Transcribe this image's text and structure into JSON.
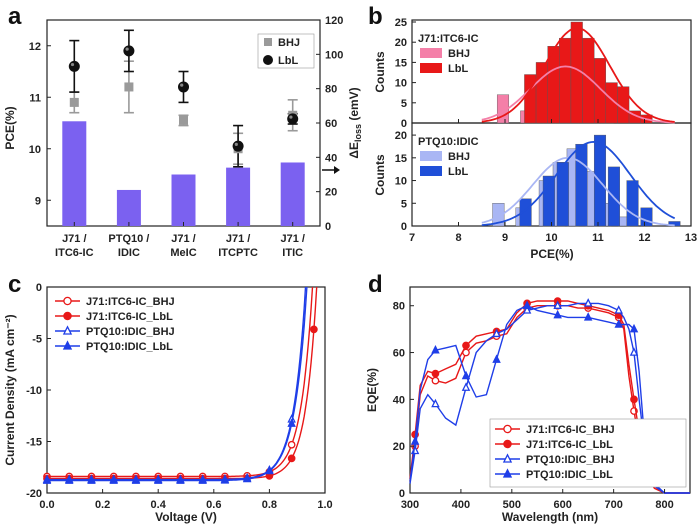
{
  "panel_labels": [
    "a",
    "b",
    "c",
    "d"
  ],
  "chart_data": [
    {
      "panel": "a",
      "type": "bar",
      "categories": [
        "J71 / ITC6-IC",
        "PTQ10 / IDIC",
        "J71 / MeIC",
        "J71 / ITCPTC",
        "J71 / ITIC"
      ],
      "categories_lines": [
        [
          "J71 /",
          "ITC6-IC"
        ],
        [
          "PTQ10 /",
          "IDIC"
        ],
        [
          "J71 /",
          "MeIC"
        ],
        [
          "J71 /",
          "ITCPTC"
        ],
        [
          "J71 /",
          "ITIC"
        ]
      ],
      "ylabel": "PCE(%)",
      "ylim": [
        8.5,
        12.5
      ],
      "yticks": [
        9,
        10,
        11,
        12
      ],
      "y2label_main": "ΔE",
      "y2label_sub": "loss",
      "y2label_unit": " (emV)",
      "y2lim": [
        0,
        120
      ],
      "y2ticks": [
        0,
        20,
        40,
        60,
        80,
        100,
        120
      ],
      "bars": {
        "axis": "right",
        "color": "#7b61f0",
        "values": [
          61,
          21,
          30,
          34,
          37
        ]
      },
      "series": [
        {
          "name": "BHJ",
          "marker": "square",
          "color": "#9a9a9a",
          "values": [
            10.9,
            11.2,
            10.55,
            10.0,
            10.65
          ],
          "err": [
            0.2,
            0.5,
            0.1,
            0.3,
            0.3
          ]
        },
        {
          "name": "LbL",
          "marker": "circle",
          "color": "#111111",
          "values": [
            11.6,
            11.9,
            11.2,
            10.05,
            10.58
          ],
          "err": [
            0.5,
            0.4,
            0.3,
            0.4,
            0.1
          ]
        }
      ],
      "legend": "top-right"
    },
    {
      "panel": "b-top",
      "type": "bar",
      "title": "J71:ITC6-IC",
      "ylabel": "Counts",
      "ylim": [
        0,
        25
      ],
      "yticks": [
        0,
        5,
        10,
        15,
        20,
        25
      ],
      "xlim": [
        7,
        13
      ],
      "bin_width": 0.25,
      "series": [
        {
          "name": "BHJ",
          "color": "#f47fa8",
          "x": [
            9.0,
            9.5,
            9.75,
            10.0,
            10.25,
            10.5,
            10.75,
            11.0,
            11.25
          ],
          "values": [
            7,
            3,
            10,
            13,
            10,
            8,
            6,
            5,
            1
          ],
          "fit_center": 10.3,
          "fit_sigma": 0.75,
          "fit_amp": 14
        },
        {
          "name": "LbL",
          "color": "#e81818",
          "x": [
            9.5,
            9.75,
            10.0,
            10.25,
            10.5,
            10.75,
            11.0,
            11.25,
            11.5,
            11.75,
            12.0
          ],
          "values": [
            12,
            15,
            19,
            21,
            25,
            21,
            16,
            10,
            9,
            3,
            2
          ],
          "fit_center": 10.55,
          "fit_sigma": 0.7,
          "fit_amp": 23.5
        }
      ],
      "legend": "top-left"
    },
    {
      "panel": "b-bottom",
      "type": "bar",
      "title": "PTQ10:IDIC",
      "ylabel": "Counts",
      "xlabel": "PCE(%)",
      "ylim": [
        0,
        22
      ],
      "yticks": [
        0,
        5,
        10,
        15,
        20
      ],
      "xlim": [
        7,
        13
      ],
      "xticks": [
        7,
        8,
        9,
        10,
        11,
        12,
        13
      ],
      "bin_width": 0.25,
      "series": [
        {
          "name": "BHJ",
          "color": "#a9b6f4",
          "x": [
            8.9,
            9.4,
            9.9,
            10.2,
            10.5,
            10.9,
            11.2,
            11.6
          ],
          "values": [
            5,
            4,
            10,
            14,
            17,
            12,
            5,
            2
          ],
          "fit_center": 10.35,
          "fit_sigma": 0.75,
          "fit_amp": 15
        },
        {
          "name": "LbL",
          "color": "#1f4fd8",
          "x": [
            9.4,
            9.9,
            10.2,
            10.6,
            11.0,
            11.3,
            11.7,
            12.0,
            12.6
          ],
          "values": [
            6,
            11,
            14,
            18,
            20,
            13,
            10,
            4,
            1
          ],
          "fit_center": 10.9,
          "fit_sigma": 0.8,
          "fit_amp": 18.5
        }
      ],
      "legend": "top-left"
    },
    {
      "panel": "c",
      "type": "line",
      "xlabel": "Voltage (V)",
      "ylabel": "Current Density (mA cm⁻²)",
      "xlim": [
        0,
        1.0
      ],
      "ylim": [
        -20,
        0
      ],
      "xticks": [
        0.0,
        0.2,
        0.4,
        0.6,
        0.8,
        1.0
      ],
      "yticks": [
        -20,
        -15,
        -10,
        -5,
        0
      ],
      "series": [
        {
          "name": "J71:ITC6-IC_BHJ",
          "marker": "circle-open",
          "color": "#e81818",
          "jsc": 18.4,
          "voc": 0.955,
          "k": 0.042,
          "a": 0.012
        },
        {
          "name": "J71:ITC6-IC_LbL",
          "marker": "circle",
          "color": "#e81818",
          "jsc": 18.6,
          "voc": 0.97,
          "k": 0.04,
          "a": 0.011
        },
        {
          "name": "PTQ10:IDIC_BHJ",
          "marker": "triangle-open",
          "color": "#1f3ee8",
          "jsc": 18.7,
          "voc": 0.93,
          "k": 0.043,
          "a": 0.014
        },
        {
          "name": "PTQ10:IDIC_LbL",
          "marker": "triangle",
          "color": "#1f3ee8",
          "jsc": 18.8,
          "voc": 0.935,
          "k": 0.045,
          "a": 0.013
        }
      ],
      "legend": "top-left"
    },
    {
      "panel": "d",
      "type": "line",
      "xlabel": "Wavelength (nm)",
      "ylabel": "EQE(%)",
      "xlim": [
        300,
        850
      ],
      "ylim": [
        0,
        88
      ],
      "xticks": [
        300,
        400,
        500,
        600,
        700,
        800
      ],
      "yticks": [
        0,
        20,
        40,
        60,
        80
      ],
      "series": [
        {
          "name": "J71:ITC6-IC_BHJ",
          "marker": "circle-open",
          "color": "#e81818",
          "x": [
            300,
            310,
            320,
            335,
            350,
            370,
            390,
            410,
            430,
            450,
            470,
            490,
            510,
            530,
            550,
            570,
            590,
            610,
            630,
            650,
            670,
            690,
            710,
            720,
            730,
            740,
            750,
            760,
            770,
            780,
            800,
            850
          ],
          "y": [
            5,
            20,
            42,
            50,
            48,
            47,
            49,
            60,
            64,
            65,
            67,
            68,
            75,
            79,
            80,
            80,
            80,
            80,
            79,
            79,
            78,
            77,
            75,
            70,
            50,
            35,
            22,
            12,
            6,
            2,
            0,
            0
          ]
        },
        {
          "name": "J71:ITC6-IC_LbL",
          "marker": "circle",
          "color": "#e81818",
          "x": [
            300,
            310,
            320,
            335,
            350,
            370,
            390,
            410,
            430,
            450,
            470,
            490,
            510,
            530,
            550,
            570,
            590,
            610,
            630,
            650,
            670,
            690,
            710,
            720,
            730,
            740,
            750,
            760,
            770,
            780,
            800,
            850
          ],
          "y": [
            6,
            25,
            46,
            52,
            51,
            53,
            55,
            63,
            67,
            68,
            69,
            70,
            77,
            81,
            82,
            82,
            82,
            82,
            81,
            80,
            79,
            78,
            76,
            72,
            55,
            40,
            26,
            15,
            8,
            3,
            0,
            0
          ]
        },
        {
          "name": "PTQ10:IDIC_BHJ",
          "marker": "triangle-open",
          "color": "#1f3ee8",
          "x": [
            300,
            310,
            320,
            335,
            350,
            370,
            390,
            410,
            430,
            450,
            470,
            490,
            510,
            530,
            550,
            570,
            590,
            610,
            630,
            650,
            670,
            690,
            710,
            720,
            730,
            740,
            750,
            760,
            770,
            780,
            800,
            850
          ],
          "y": [
            4,
            18,
            36,
            42,
            38,
            32,
            29,
            45,
            60,
            65,
            68,
            70,
            74,
            78,
            79,
            80,
            80,
            80,
            81,
            81,
            81,
            80,
            78,
            75,
            70,
            60,
            40,
            22,
            10,
            4,
            0,
            0
          ]
        },
        {
          "name": "PTQ10:IDIC_LbL",
          "marker": "triangle",
          "color": "#1f3ee8",
          "x": [
            300,
            310,
            320,
            335,
            350,
            370,
            390,
            410,
            430,
            450,
            470,
            490,
            510,
            530,
            550,
            570,
            590,
            610,
            630,
            650,
            670,
            690,
            710,
            720,
            730,
            740,
            750,
            760,
            770,
            780,
            800,
            850
          ],
          "y": [
            5,
            22,
            44,
            57,
            61,
            62,
            63,
            50,
            41,
            42,
            57,
            72,
            78,
            80,
            78,
            77,
            76,
            75,
            75,
            75,
            74,
            73,
            72,
            72,
            72,
            70,
            52,
            25,
            8,
            3,
            0,
            0
          ]
        }
      ],
      "legend": "bottom-right"
    }
  ]
}
